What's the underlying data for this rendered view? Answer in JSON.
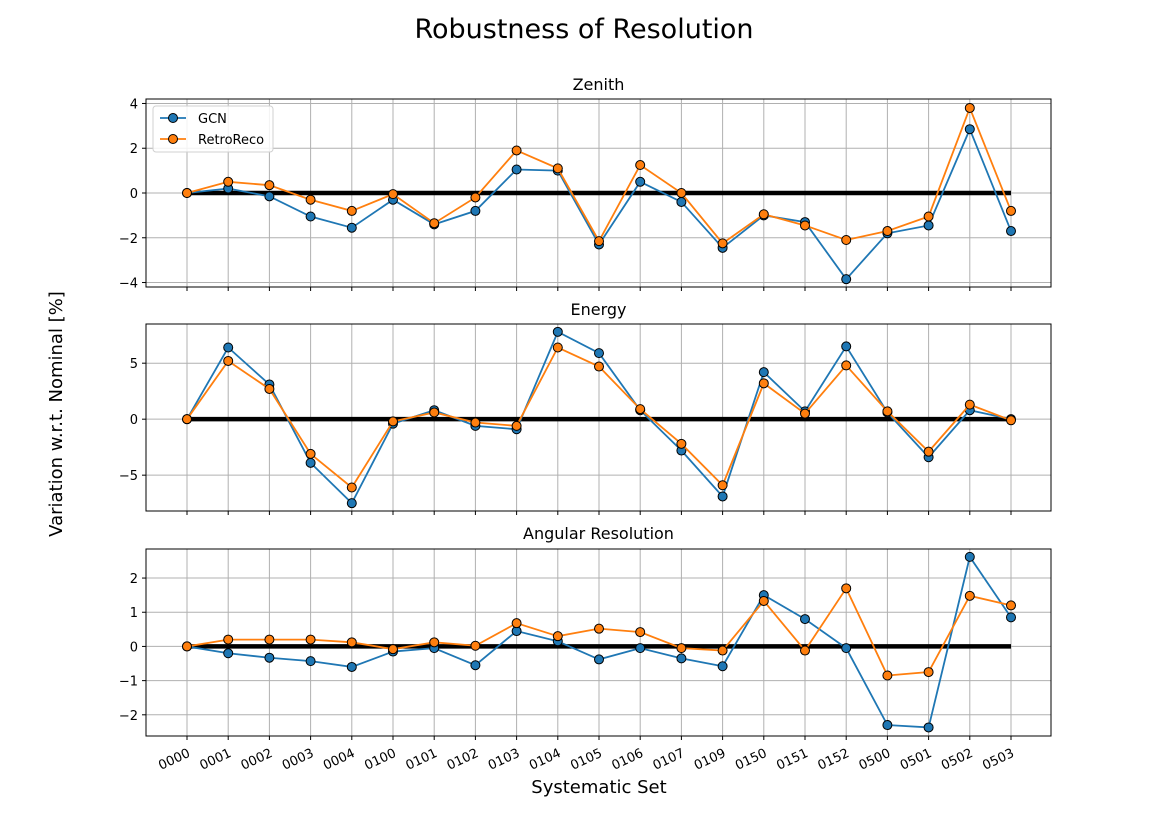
{
  "title": "Robustness of Resolution",
  "xlabel": "Systematic Set",
  "ylabel": "Variation w.r.t. Nominal [%]",
  "colors": {
    "gcn": "#1f77b4",
    "retroreco": "#ff7f0e",
    "nominal": "#000000",
    "grid": "#b0b0b0"
  },
  "chart_data": [
    {
      "type": "line",
      "title": "Zenith",
      "categories": [
        "0000",
        "0001",
        "0002",
        "0003",
        "0004",
        "0100",
        "0101",
        "0102",
        "0103",
        "0104",
        "0105",
        "0106",
        "0107",
        "0109",
        "0150",
        "0151",
        "0152",
        "0500",
        "0501",
        "0502",
        "0503"
      ],
      "ylim": [
        -4.2,
        4.2
      ],
      "yticks": [
        -4,
        -2,
        0,
        2,
        4
      ],
      "ytick_labels": [
        "−4",
        "−2",
        "0",
        "2",
        "4"
      ],
      "grid": true,
      "legend": "top-left",
      "series": [
        {
          "name": "GCN",
          "values": [
            0.0,
            0.2,
            -0.15,
            -1.05,
            -1.55,
            -0.3,
            -1.4,
            -0.8,
            1.05,
            1.0,
            -2.3,
            0.5,
            -0.4,
            -2.45,
            -1.0,
            -1.3,
            -3.85,
            -1.8,
            -1.45,
            2.85,
            -1.7
          ]
        },
        {
          "name": "RetroReco",
          "values": [
            0.0,
            0.5,
            0.35,
            -0.3,
            -0.8,
            -0.05,
            -1.35,
            -0.2,
            1.9,
            1.1,
            -2.15,
            1.25,
            0.0,
            -2.25,
            -0.95,
            -1.45,
            -2.1,
            -1.7,
            -1.05,
            3.8,
            -0.8
          ]
        }
      ],
      "nominal": 0
    },
    {
      "type": "line",
      "title": "Energy",
      "categories": [
        "0000",
        "0001",
        "0002",
        "0003",
        "0004",
        "0100",
        "0101",
        "0102",
        "0103",
        "0104",
        "0105",
        "0106",
        "0107",
        "0109",
        "0150",
        "0151",
        "0152",
        "0500",
        "0501",
        "0502",
        "0503"
      ],
      "ylim": [
        -8.2,
        8.5
      ],
      "yticks": [
        -5,
        0,
        5
      ],
      "ytick_labels": [
        "−5",
        "0",
        "5"
      ],
      "grid": true,
      "series": [
        {
          "name": "GCN",
          "values": [
            0.0,
            6.4,
            3.1,
            -3.9,
            -7.5,
            -0.4,
            0.8,
            -0.6,
            -0.9,
            7.8,
            5.9,
            0.8,
            -2.8,
            -6.9,
            4.2,
            0.7,
            6.5,
            0.6,
            -3.4,
            0.8,
            0.0
          ]
        },
        {
          "name": "RetroReco",
          "values": [
            0.0,
            5.2,
            2.7,
            -3.1,
            -6.1,
            -0.2,
            0.6,
            -0.3,
            -0.6,
            6.4,
            4.7,
            0.9,
            -2.2,
            -5.9,
            3.2,
            0.5,
            4.8,
            0.7,
            -2.9,
            1.3,
            -0.1
          ]
        }
      ],
      "nominal": 0
    },
    {
      "type": "line",
      "title": "Angular Resolution",
      "categories": [
        "0000",
        "0001",
        "0002",
        "0003",
        "0004",
        "0100",
        "0101",
        "0102",
        "0103",
        "0104",
        "0105",
        "0106",
        "0107",
        "0109",
        "0150",
        "0151",
        "0152",
        "0500",
        "0501",
        "0502",
        "0503"
      ],
      "ylim": [
        -2.62,
        2.85
      ],
      "yticks": [
        -2,
        -1,
        0,
        1,
        2
      ],
      "ytick_labels": [
        "−2",
        "−1",
        "0",
        "1",
        "2"
      ],
      "grid": true,
      "series": [
        {
          "name": "GCN",
          "values": [
            0.0,
            -0.2,
            -0.33,
            -0.43,
            -0.6,
            -0.15,
            -0.05,
            -0.55,
            0.45,
            0.15,
            -0.38,
            -0.05,
            -0.35,
            -0.58,
            1.5,
            0.8,
            -0.05,
            -2.3,
            -2.37,
            2.62,
            0.85
          ]
        },
        {
          "name": "RetroReco",
          "values": [
            0.0,
            0.2,
            0.2,
            0.2,
            0.12,
            -0.08,
            0.12,
            0.02,
            0.68,
            0.3,
            0.52,
            0.42,
            -0.05,
            -0.12,
            1.33,
            -0.12,
            1.7,
            -0.85,
            -0.75,
            1.48,
            1.2
          ]
        }
      ],
      "nominal": 0
    }
  ]
}
